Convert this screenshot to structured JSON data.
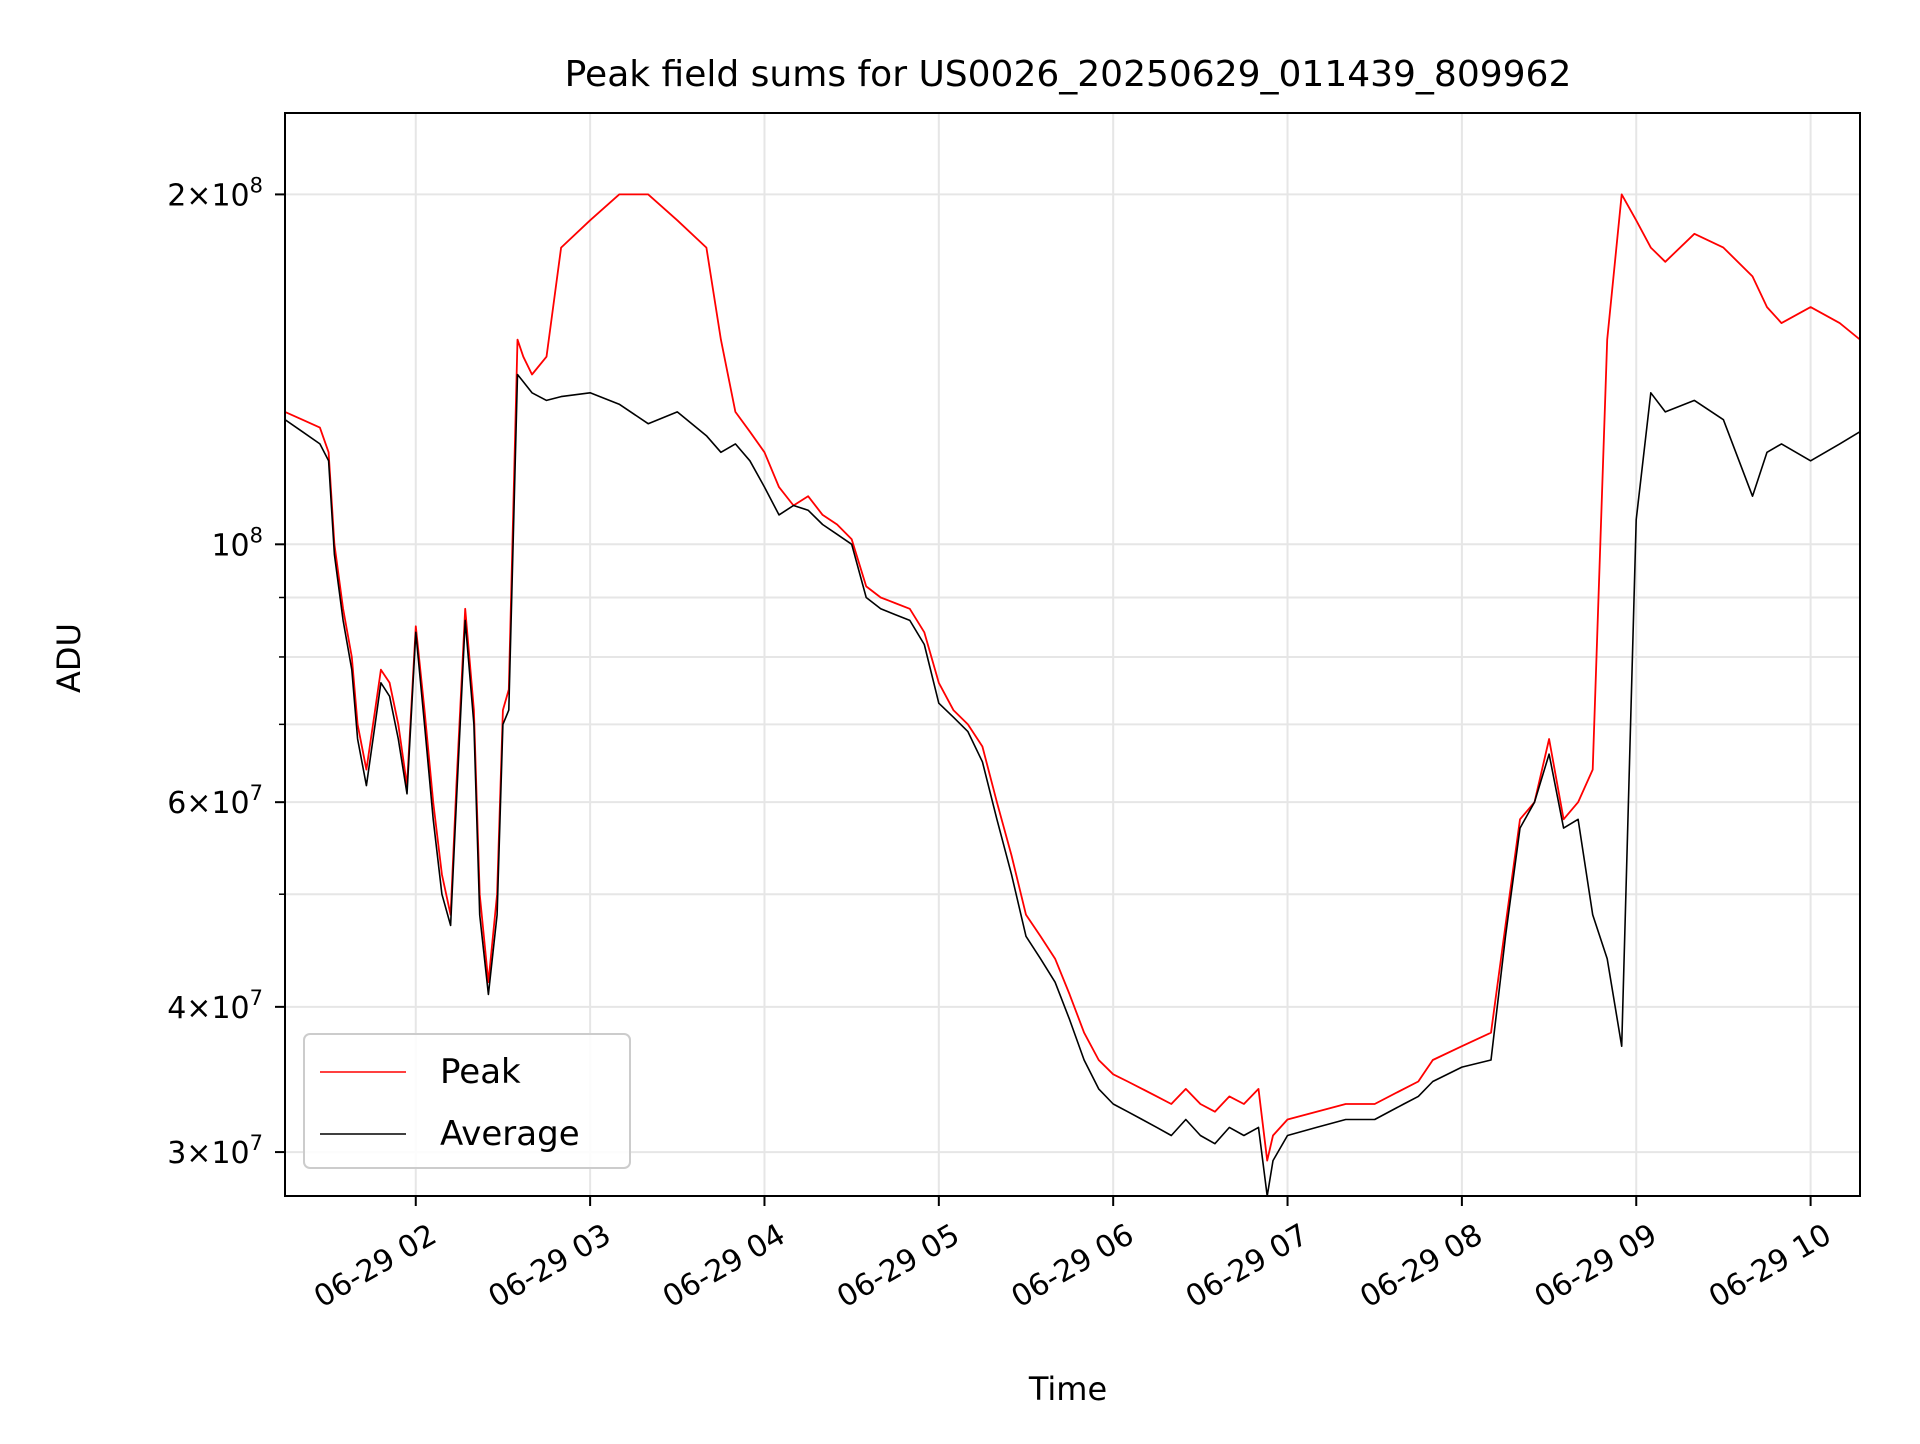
{
  "chart_data": {
    "type": "line",
    "title": "Peak field sums for US0026_20250629_011439_809962",
    "xlabel": "Time",
    "ylabel": "ADU",
    "yscale": "log",
    "xlim": [
      "2025-06-29 01:15",
      "2025-06-29 10:17"
    ],
    "ylim": [
      27500000,
      235000000
    ],
    "grid": true,
    "legend_position": "lower-left",
    "x_ticks": [
      {
        "value": "2025-06-29 02:00",
        "label": "06-29 02"
      },
      {
        "value": "2025-06-29 03:00",
        "label": "06-29 03"
      },
      {
        "value": "2025-06-29 04:00",
        "label": "06-29 04"
      },
      {
        "value": "2025-06-29 05:00",
        "label": "06-29 05"
      },
      {
        "value": "2025-06-29 06:00",
        "label": "06-29 06"
      },
      {
        "value": "2025-06-29 07:00",
        "label": "06-29 07"
      },
      {
        "value": "2025-06-29 08:00",
        "label": "06-29 08"
      },
      {
        "value": "2025-06-29 09:00",
        "label": "06-29 09"
      },
      {
        "value": "2025-06-29 10:00",
        "label": "06-29 10"
      }
    ],
    "y_ticks": [
      {
        "value": 30000000,
        "mantissa": "3",
        "exponent": "7"
      },
      {
        "value": 40000000,
        "mantissa": "4",
        "exponent": "7"
      },
      {
        "value": 60000000,
        "mantissa": "6",
        "exponent": "7"
      },
      {
        "value": 100000000,
        "mantissa": "",
        "exponent": "8"
      },
      {
        "value": 200000000,
        "mantissa": "2",
        "exponent": "8"
      }
    ],
    "y_minor_ticks": [
      50000000,
      70000000,
      80000000,
      90000000
    ],
    "series": [
      {
        "name": "Peak",
        "color": "#ff0000",
        "x": [
          "01:15",
          "01:21",
          "01:27",
          "01:30",
          "01:32",
          "01:35",
          "01:38",
          "01:40",
          "01:43",
          "01:46",
          "01:48",
          "01:51",
          "01:54",
          "01:57",
          "02:00",
          "02:03",
          "02:06",
          "02:09",
          "02:12",
          "02:14",
          "02:17",
          "02:20",
          "02:22",
          "02:25",
          "02:28",
          "02:30",
          "02:32",
          "02:35",
          "02:37",
          "02:40",
          "02:45",
          "02:50",
          "03:00",
          "03:10",
          "03:20",
          "03:30",
          "03:40",
          "03:45",
          "03:50",
          "03:55",
          "04:00",
          "04:05",
          "04:10",
          "04:15",
          "04:20",
          "04:25",
          "04:30",
          "04:35",
          "04:40",
          "04:45",
          "04:50",
          "04:55",
          "05:00",
          "05:05",
          "05:10",
          "05:15",
          "05:20",
          "05:25",
          "05:30",
          "05:35",
          "05:40",
          "05:45",
          "05:50",
          "05:55",
          "06:00",
          "06:05",
          "06:10",
          "06:15",
          "06:20",
          "06:25",
          "06:30",
          "06:35",
          "06:40",
          "06:45",
          "06:50",
          "06:53",
          "06:55",
          "07:00",
          "07:10",
          "07:20",
          "07:30",
          "07:40",
          "07:45",
          "07:50",
          "08:00",
          "08:10",
          "08:15",
          "08:20",
          "08:25",
          "08:30",
          "08:35",
          "08:40",
          "08:45",
          "08:50",
          "08:55",
          "09:00",
          "09:05",
          "09:10",
          "09:20",
          "09:30",
          "09:40",
          "09:45",
          "09:50",
          "10:00",
          "10:10",
          "10:17"
        ],
        "values": [
          130000000,
          128000000,
          126000000,
          120000000,
          100000000,
          88000000,
          80000000,
          70000000,
          64000000,
          72000000,
          78000000,
          76000000,
          70000000,
          62000000,
          85000000,
          72000000,
          60000000,
          52000000,
          48000000,
          62000000,
          88000000,
          72000000,
          50000000,
          42000000,
          50000000,
          72000000,
          75000000,
          150000000,
          145000000,
          140000000,
          145000000,
          180000000,
          190000000,
          200000000,
          200000000,
          190000000,
          180000000,
          150000000,
          130000000,
          125000000,
          120000000,
          112000000,
          108000000,
          110000000,
          106000000,
          104000000,
          101000000,
          92000000,
          90000000,
          89000000,
          88000000,
          84000000,
          76000000,
          72000000,
          70000000,
          67000000,
          60000000,
          54000000,
          48000000,
          46000000,
          44000000,
          41000000,
          38000000,
          36000000,
          35000000,
          34500000,
          34000000,
          33500000,
          33000000,
          34000000,
          33000000,
          32500000,
          33500000,
          33000000,
          34000000,
          29500000,
          31000000,
          32000000,
          32500000,
          33000000,
          33000000,
          34000000,
          34500000,
          36000000,
          37000000,
          38000000,
          47000000,
          58000000,
          60000000,
          68000000,
          58000000,
          60000000,
          64000000,
          150000000,
          200000000,
          190000000,
          180000000,
          175000000,
          185000000,
          180000000,
          170000000,
          160000000,
          155000000,
          160000000,
          155000000,
          150000000
        ]
      },
      {
        "name": "Average",
        "color": "#000000",
        "x": [
          "01:15",
          "01:21",
          "01:27",
          "01:30",
          "01:32",
          "01:35",
          "01:38",
          "01:40",
          "01:43",
          "01:46",
          "01:48",
          "01:51",
          "01:54",
          "01:57",
          "02:00",
          "02:03",
          "02:06",
          "02:09",
          "02:12",
          "02:14",
          "02:17",
          "02:20",
          "02:22",
          "02:25",
          "02:28",
          "02:30",
          "02:32",
          "02:35",
          "02:37",
          "02:40",
          "02:45",
          "02:50",
          "03:00",
          "03:10",
          "03:20",
          "03:30",
          "03:40",
          "03:45",
          "03:50",
          "03:55",
          "04:00",
          "04:05",
          "04:10",
          "04:15",
          "04:20",
          "04:25",
          "04:30",
          "04:35",
          "04:40",
          "04:45",
          "04:50",
          "04:55",
          "05:00",
          "05:05",
          "05:10",
          "05:15",
          "05:20",
          "05:25",
          "05:30",
          "05:35",
          "05:40",
          "05:45",
          "05:50",
          "05:55",
          "06:00",
          "06:05",
          "06:10",
          "06:15",
          "06:20",
          "06:25",
          "06:30",
          "06:35",
          "06:40",
          "06:45",
          "06:50",
          "06:53",
          "06:55",
          "07:00",
          "07:10",
          "07:20",
          "07:30",
          "07:40",
          "07:45",
          "07:50",
          "08:00",
          "08:10",
          "08:15",
          "08:20",
          "08:25",
          "08:30",
          "08:35",
          "08:40",
          "08:45",
          "08:50",
          "08:55",
          "09:00",
          "09:05",
          "09:10",
          "09:20",
          "09:30",
          "09:40",
          "09:45",
          "09:50",
          "10:00",
          "10:10",
          "10:17"
        ],
        "values": [
          128000000,
          125000000,
          122000000,
          118000000,
          98000000,
          86000000,
          78000000,
          68000000,
          62000000,
          70000000,
          76000000,
          74000000,
          68000000,
          61000000,
          84000000,
          70000000,
          58000000,
          50000000,
          47000000,
          60000000,
          86000000,
          70000000,
          48000000,
          41000000,
          48000000,
          70000000,
          72000000,
          140000000,
          138000000,
          135000000,
          133000000,
          134000000,
          135000000,
          132000000,
          127000000,
          130000000,
          124000000,
          120000000,
          122000000,
          118000000,
          112000000,
          106000000,
          108000000,
          107000000,
          104000000,
          102000000,
          100000000,
          90000000,
          88000000,
          87000000,
          86000000,
          82000000,
          73000000,
          71000000,
          69000000,
          65000000,
          58000000,
          52000000,
          46000000,
          44000000,
          42000000,
          39000000,
          36000000,
          34000000,
          33000000,
          32500000,
          32000000,
          31500000,
          31000000,
          32000000,
          31000000,
          30500000,
          31500000,
          31000000,
          31500000,
          27500000,
          29500000,
          31000000,
          31500000,
          32000000,
          32000000,
          33000000,
          33500000,
          34500000,
          35500000,
          36000000,
          46000000,
          57000000,
          60000000,
          66000000,
          57000000,
          58000000,
          48000000,
          44000000,
          37000000,
          105000000,
          135000000,
          130000000,
          133000000,
          128000000,
          110000000,
          120000000,
          122000000,
          118000000,
          122000000,
          125000000
        ]
      }
    ]
  }
}
